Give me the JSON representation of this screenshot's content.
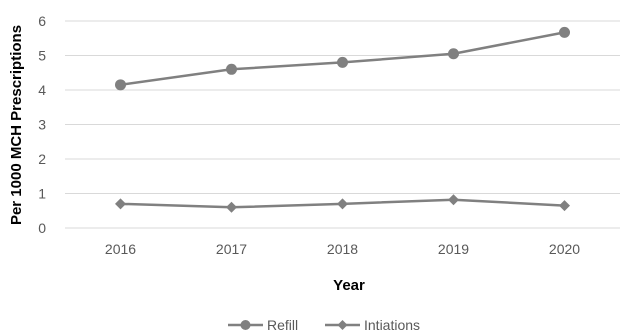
{
  "chart_data": {
    "type": "line",
    "title": "",
    "xlabel": "Year",
    "ylabel": "Per  1000 MCH Prescriptions",
    "categories": [
      "2016",
      "2017",
      "2018",
      "2019",
      "2020"
    ],
    "ylim": [
      0,
      6
    ],
    "yticks": [
      "0",
      "1",
      "2",
      "3",
      "4",
      "5",
      "6"
    ],
    "grid": true,
    "legend_position": "bottom",
    "series": [
      {
        "name": "Refill",
        "values": [
          4.15,
          4.6,
          4.8,
          5.05,
          5.67
        ],
        "marker": "circle",
        "color": "#808080"
      },
      {
        "name": "Intiations",
        "values": [
          0.7,
          0.6,
          0.7,
          0.82,
          0.65
        ],
        "marker": "diamond",
        "color": "#808080"
      }
    ]
  }
}
